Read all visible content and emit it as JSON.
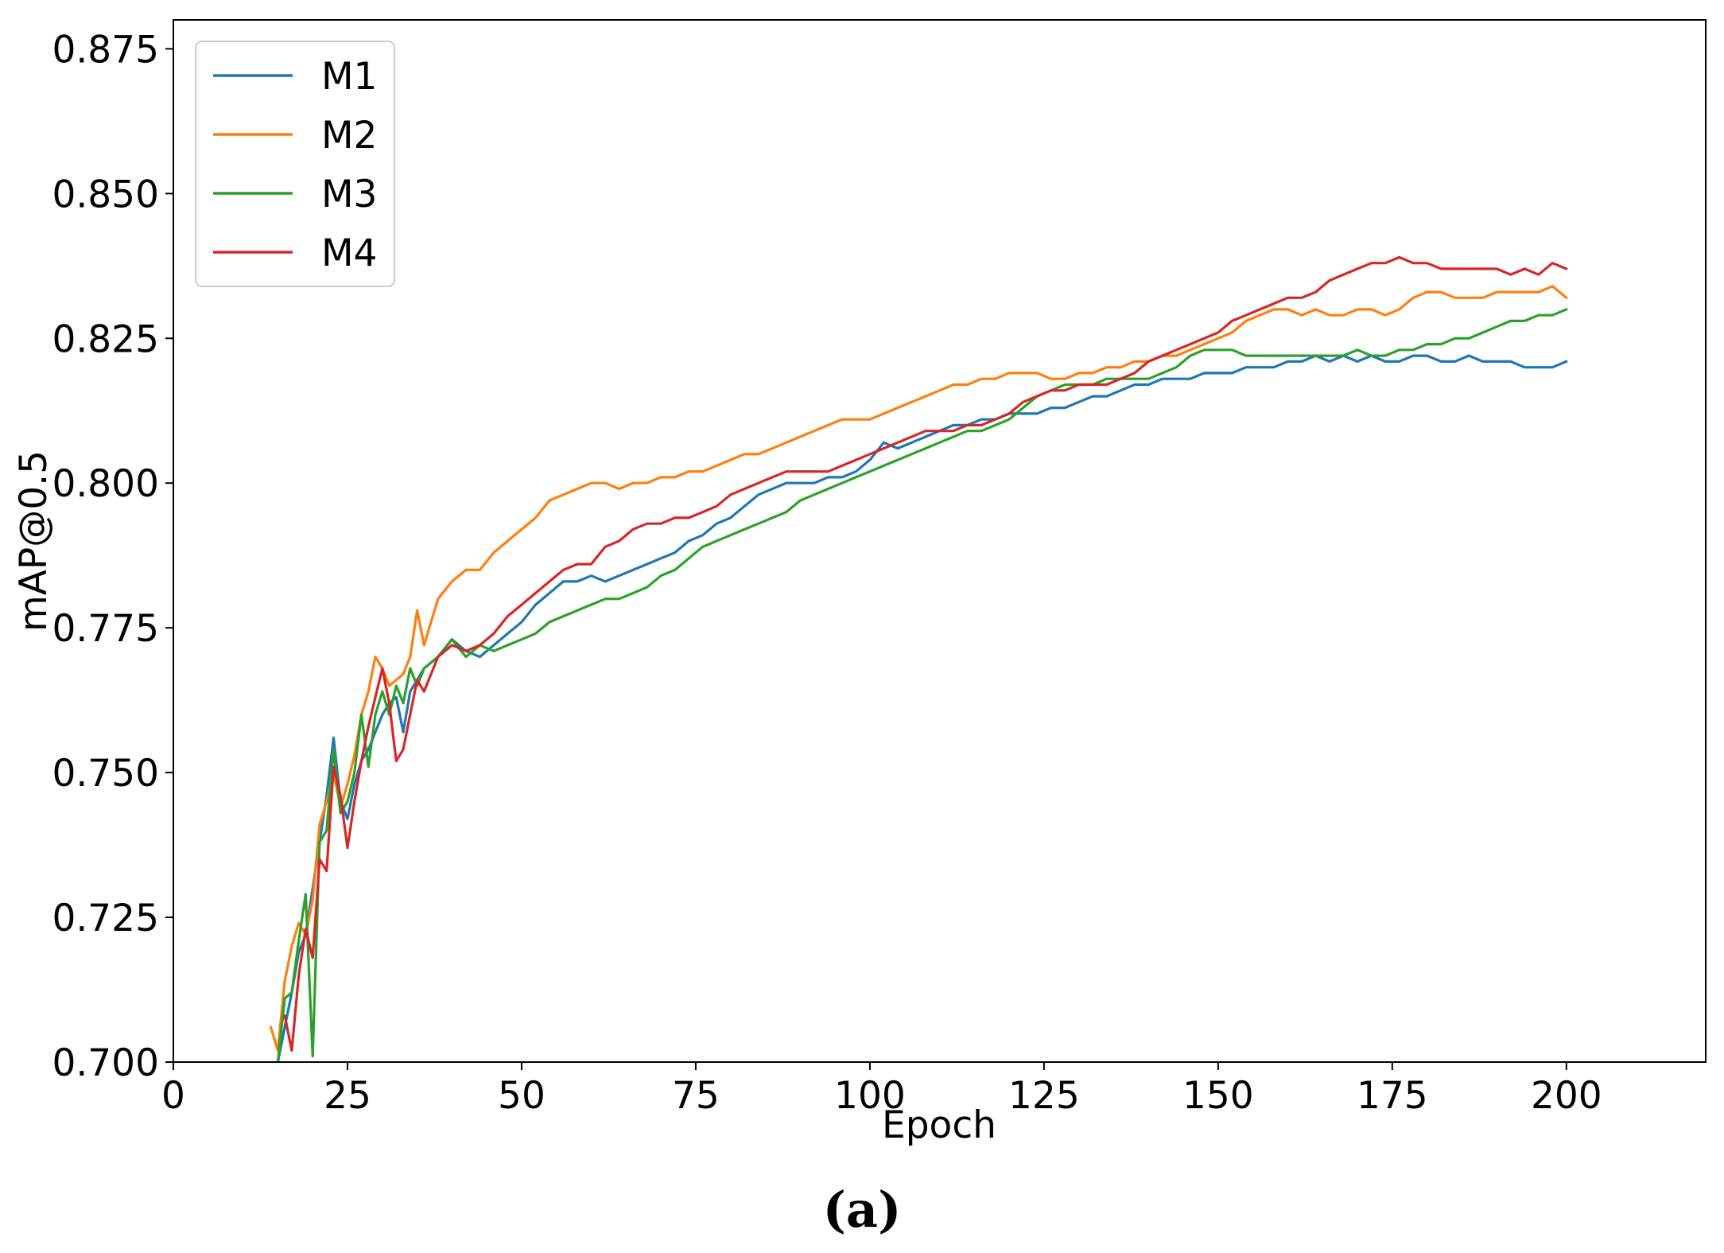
{
  "chart_data": {
    "type": "line",
    "title": "",
    "xlabel": "Epoch",
    "ylabel": "mAP@0.5",
    "caption": "(a)",
    "xlim": [
      0,
      220
    ],
    "ylim": [
      0.7,
      0.88
    ],
    "xticks": [
      "0",
      "25",
      "50",
      "75",
      "100",
      "125",
      "150",
      "175",
      "200"
    ],
    "yticks": [
      "0.700",
      "0.725",
      "0.750",
      "0.775",
      "0.800",
      "0.825",
      "0.850",
      "0.875"
    ],
    "grid": false,
    "legend_position": "top-left",
    "series": [
      {
        "name": "M1",
        "color": "#1f77b4",
        "x": [
          15,
          16,
          17,
          18,
          19,
          20,
          21,
          22,
          23,
          24,
          25,
          26,
          27,
          28,
          29,
          30,
          31,
          32,
          33,
          34,
          35,
          36,
          38,
          40,
          42,
          44,
          46,
          48,
          50,
          52,
          54,
          56,
          58,
          60,
          62,
          64,
          66,
          68,
          70,
          72,
          74,
          76,
          78,
          80,
          82,
          84,
          86,
          88,
          90,
          92,
          94,
          96,
          98,
          100,
          102,
          104,
          106,
          108,
          110,
          112,
          114,
          116,
          118,
          120,
          122,
          124,
          126,
          128,
          130,
          132,
          134,
          136,
          138,
          140,
          142,
          144,
          146,
          148,
          150,
          152,
          154,
          156,
          158,
          160,
          162,
          164,
          166,
          168,
          170,
          172,
          174,
          176,
          178,
          180,
          182,
          184,
          186,
          188,
          190,
          192,
          194,
          196,
          198,
          200
        ],
        "y": [
          0.7,
          0.706,
          0.712,
          0.719,
          0.722,
          0.73,
          0.738,
          0.746,
          0.756,
          0.745,
          0.742,
          0.748,
          0.752,
          0.754,
          0.757,
          0.76,
          0.762,
          0.763,
          0.757,
          0.764,
          0.766,
          0.768,
          0.77,
          0.773,
          0.771,
          0.77,
          0.772,
          0.774,
          0.776,
          0.779,
          0.781,
          0.783,
          0.783,
          0.784,
          0.783,
          0.784,
          0.785,
          0.786,
          0.787,
          0.788,
          0.79,
          0.791,
          0.793,
          0.794,
          0.796,
          0.798,
          0.799,
          0.8,
          0.8,
          0.8,
          0.801,
          0.801,
          0.802,
          0.804,
          0.807,
          0.806,
          0.807,
          0.808,
          0.809,
          0.81,
          0.81,
          0.811,
          0.811,
          0.812,
          0.812,
          0.812,
          0.813,
          0.813,
          0.814,
          0.815,
          0.815,
          0.816,
          0.817,
          0.817,
          0.818,
          0.818,
          0.818,
          0.819,
          0.819,
          0.819,
          0.82,
          0.82,
          0.82,
          0.821,
          0.821,
          0.822,
          0.821,
          0.822,
          0.821,
          0.822,
          0.821,
          0.821,
          0.822,
          0.822,
          0.821,
          0.821,
          0.822,
          0.821,
          0.821,
          0.821,
          0.82,
          0.82,
          0.82,
          0.821
        ]
      },
      {
        "name": "M2",
        "color": "#ff7f0e",
        "x": [
          14,
          15,
          16,
          17,
          18,
          19,
          20,
          21,
          22,
          23,
          24,
          25,
          26,
          27,
          28,
          29,
          30,
          31,
          32,
          33,
          34,
          35,
          36,
          38,
          40,
          42,
          44,
          46,
          48,
          50,
          52,
          54,
          56,
          58,
          60,
          62,
          64,
          66,
          68,
          70,
          72,
          74,
          76,
          78,
          80,
          82,
          84,
          86,
          88,
          90,
          92,
          94,
          96,
          98,
          100,
          102,
          104,
          106,
          108,
          110,
          112,
          114,
          116,
          118,
          120,
          122,
          124,
          126,
          128,
          130,
          132,
          134,
          136,
          138,
          140,
          142,
          144,
          146,
          148,
          150,
          152,
          154,
          156,
          158,
          160,
          162,
          164,
          166,
          168,
          170,
          172,
          174,
          176,
          178,
          180,
          182,
          184,
          186,
          188,
          190,
          192,
          194,
          196,
          198,
          200
        ],
        "y": [
          0.706,
          0.702,
          0.714,
          0.72,
          0.724,
          0.722,
          0.728,
          0.741,
          0.745,
          0.75,
          0.744,
          0.748,
          0.753,
          0.76,
          0.764,
          0.77,
          0.768,
          0.765,
          0.766,
          0.767,
          0.77,
          0.778,
          0.772,
          0.78,
          0.783,
          0.785,
          0.785,
          0.788,
          0.79,
          0.792,
          0.794,
          0.797,
          0.798,
          0.799,
          0.8,
          0.8,
          0.799,
          0.8,
          0.8,
          0.801,
          0.801,
          0.802,
          0.802,
          0.803,
          0.804,
          0.805,
          0.805,
          0.806,
          0.807,
          0.808,
          0.809,
          0.81,
          0.811,
          0.811,
          0.811,
          0.812,
          0.813,
          0.814,
          0.815,
          0.816,
          0.817,
          0.817,
          0.818,
          0.818,
          0.819,
          0.819,
          0.819,
          0.818,
          0.818,
          0.819,
          0.819,
          0.82,
          0.82,
          0.821,
          0.821,
          0.822,
          0.822,
          0.823,
          0.824,
          0.825,
          0.826,
          0.828,
          0.829,
          0.83,
          0.83,
          0.829,
          0.83,
          0.829,
          0.829,
          0.83,
          0.83,
          0.829,
          0.83,
          0.832,
          0.833,
          0.833,
          0.832,
          0.832,
          0.832,
          0.833,
          0.833,
          0.833,
          0.833,
          0.834,
          0.832
        ]
      },
      {
        "name": "M3",
        "color": "#2ca02c",
        "x": [
          15,
          16,
          17,
          18,
          19,
          20,
          21,
          22,
          23,
          24,
          25,
          26,
          27,
          28,
          29,
          30,
          31,
          32,
          33,
          34,
          35,
          36,
          38,
          40,
          42,
          44,
          46,
          48,
          50,
          52,
          54,
          56,
          58,
          60,
          62,
          64,
          66,
          68,
          70,
          72,
          74,
          76,
          78,
          80,
          82,
          84,
          86,
          88,
          90,
          92,
          94,
          96,
          98,
          100,
          102,
          104,
          106,
          108,
          110,
          112,
          114,
          116,
          118,
          120,
          122,
          124,
          126,
          128,
          130,
          132,
          134,
          136,
          138,
          140,
          142,
          144,
          146,
          148,
          150,
          152,
          154,
          156,
          158,
          160,
          162,
          164,
          166,
          168,
          170,
          172,
          174,
          176,
          178,
          180,
          182,
          184,
          186,
          188,
          190,
          192,
          194,
          196,
          198,
          200
        ],
        "y": [
          0.7,
          0.711,
          0.712,
          0.721,
          0.729,
          0.701,
          0.738,
          0.74,
          0.754,
          0.743,
          0.745,
          0.75,
          0.76,
          0.751,
          0.76,
          0.764,
          0.76,
          0.765,
          0.762,
          0.768,
          0.765,
          0.768,
          0.77,
          0.773,
          0.77,
          0.772,
          0.771,
          0.772,
          0.773,
          0.774,
          0.776,
          0.777,
          0.778,
          0.779,
          0.78,
          0.78,
          0.781,
          0.782,
          0.784,
          0.785,
          0.787,
          0.789,
          0.79,
          0.791,
          0.792,
          0.793,
          0.794,
          0.795,
          0.797,
          0.798,
          0.799,
          0.8,
          0.801,
          0.802,
          0.803,
          0.804,
          0.805,
          0.806,
          0.807,
          0.808,
          0.809,
          0.809,
          0.81,
          0.811,
          0.813,
          0.815,
          0.816,
          0.817,
          0.817,
          0.817,
          0.818,
          0.818,
          0.818,
          0.818,
          0.819,
          0.82,
          0.822,
          0.823,
          0.823,
          0.823,
          0.822,
          0.822,
          0.822,
          0.822,
          0.822,
          0.822,
          0.822,
          0.822,
          0.823,
          0.822,
          0.822,
          0.823,
          0.823,
          0.824,
          0.824,
          0.825,
          0.825,
          0.826,
          0.827,
          0.828,
          0.828,
          0.829,
          0.829,
          0.83
        ]
      },
      {
        "name": "M4",
        "color": "#d62728",
        "x": [
          16,
          17,
          18,
          19,
          20,
          21,
          22,
          23,
          24,
          25,
          26,
          27,
          28,
          29,
          30,
          31,
          32,
          33,
          34,
          35,
          36,
          38,
          40,
          42,
          44,
          46,
          48,
          50,
          52,
          54,
          56,
          58,
          60,
          62,
          64,
          66,
          68,
          70,
          72,
          74,
          76,
          78,
          80,
          82,
          84,
          86,
          88,
          90,
          92,
          94,
          96,
          98,
          100,
          102,
          104,
          106,
          108,
          110,
          112,
          114,
          116,
          118,
          120,
          122,
          124,
          126,
          128,
          130,
          132,
          134,
          136,
          138,
          140,
          142,
          144,
          146,
          148,
          150,
          152,
          154,
          156,
          158,
          160,
          162,
          164,
          166,
          168,
          170,
          172,
          174,
          176,
          178,
          180,
          182,
          184,
          186,
          188,
          190,
          192,
          194,
          196,
          198,
          200
        ],
        "y": [
          0.708,
          0.702,
          0.715,
          0.723,
          0.718,
          0.735,
          0.733,
          0.751,
          0.746,
          0.737,
          0.745,
          0.752,
          0.758,
          0.763,
          0.768,
          0.762,
          0.752,
          0.754,
          0.76,
          0.766,
          0.764,
          0.77,
          0.772,
          0.771,
          0.772,
          0.774,
          0.777,
          0.779,
          0.781,
          0.783,
          0.785,
          0.786,
          0.786,
          0.789,
          0.79,
          0.792,
          0.793,
          0.793,
          0.794,
          0.794,
          0.795,
          0.796,
          0.798,
          0.799,
          0.8,
          0.801,
          0.802,
          0.802,
          0.802,
          0.802,
          0.803,
          0.804,
          0.805,
          0.806,
          0.807,
          0.808,
          0.809,
          0.809,
          0.809,
          0.81,
          0.81,
          0.811,
          0.812,
          0.814,
          0.815,
          0.816,
          0.816,
          0.817,
          0.817,
          0.817,
          0.818,
          0.819,
          0.821,
          0.822,
          0.823,
          0.824,
          0.825,
          0.826,
          0.828,
          0.829,
          0.83,
          0.831,
          0.832,
          0.832,
          0.833,
          0.835,
          0.836,
          0.837,
          0.838,
          0.838,
          0.839,
          0.838,
          0.838,
          0.837,
          0.837,
          0.837,
          0.837,
          0.837,
          0.836,
          0.837,
          0.836,
          0.838,
          0.837
        ]
      }
    ]
  }
}
